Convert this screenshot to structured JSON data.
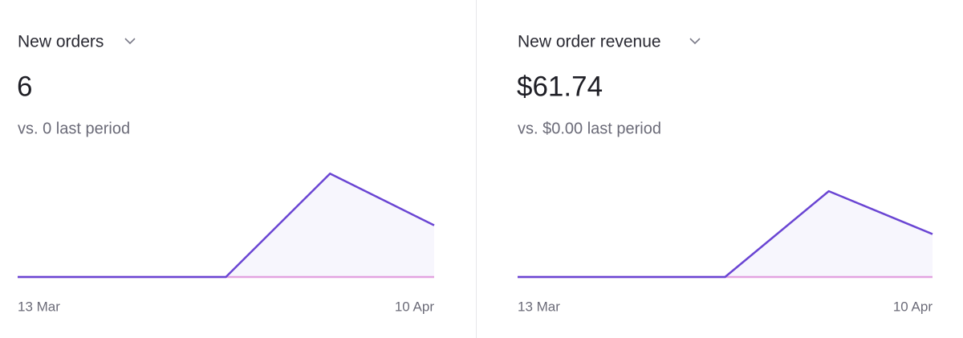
{
  "chart_data": [
    {
      "type": "line",
      "title": "New orders",
      "value": "6",
      "comparison": "vs. 0 last period",
      "categories": [
        "13 Mar",
        null,
        null,
        null,
        "10 Apr"
      ],
      "series": [
        {
          "color": "#6a45d3",
          "values": [
            0,
            0,
            0,
            4,
            2
          ]
        },
        {
          "color": "#e3a3e0",
          "values": [
            0,
            0,
            0,
            0,
            0
          ]
        }
      ],
      "ylim": [
        0,
        5
      ]
    },
    {
      "type": "line",
      "title": "New order revenue",
      "value": "$61.74",
      "comparison": "vs. $0.00 last period",
      "categories": [
        "13 Mar",
        null,
        null,
        null,
        "10 Apr"
      ],
      "series": [
        {
          "color": "#6a45d3",
          "values": [
            0,
            0,
            0,
            41.16,
            20.58
          ]
        },
        {
          "color": "#e3a3e0",
          "values": [
            0,
            0,
            0,
            0,
            0
          ]
        }
      ],
      "ylim": [
        0,
        62
      ]
    }
  ]
}
